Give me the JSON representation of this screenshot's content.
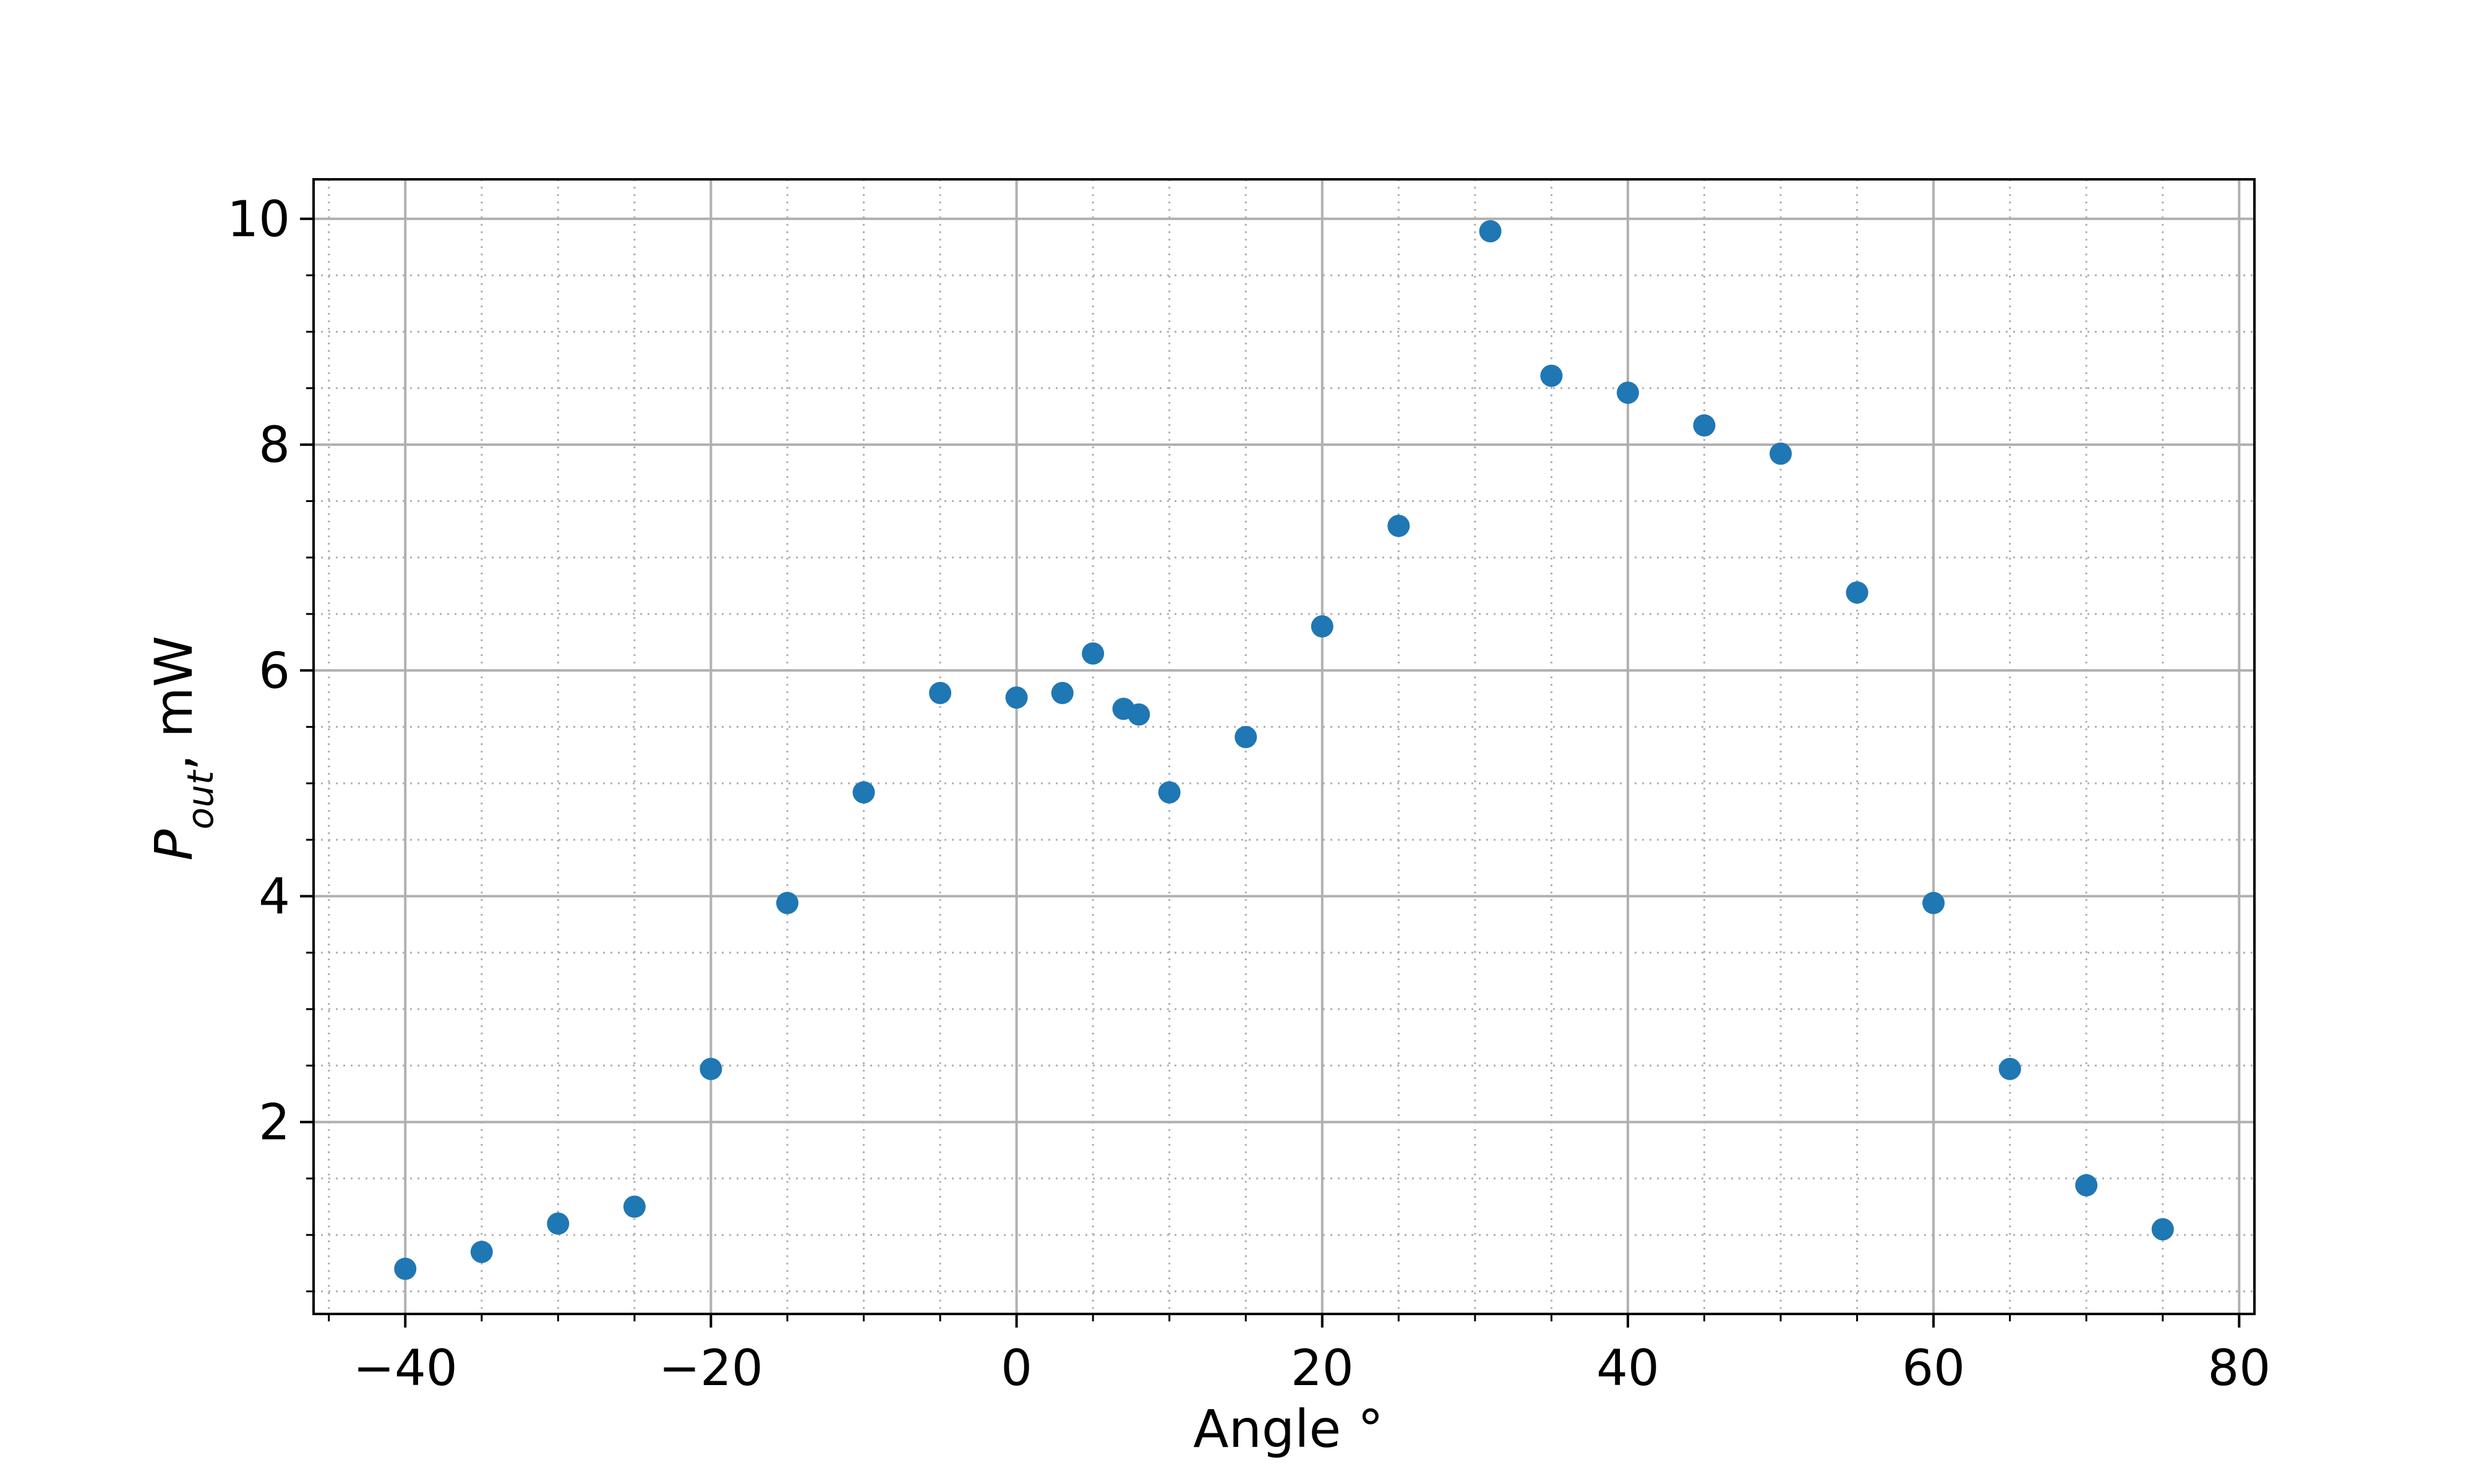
{
  "chart_data": {
    "type": "scatter",
    "xlabel": "Angle °",
    "ylabel": {
      "main": "P",
      "subscript": "out",
      "suffix": ", mW"
    },
    "xlim": [
      -46,
      81
    ],
    "ylim": [
      0.3,
      10.35
    ],
    "xticks": [
      -40,
      -20,
      0,
      20,
      40,
      60,
      80
    ],
    "yticks": [
      2,
      4,
      6,
      8,
      10
    ],
    "xtick_labels": [
      "−40",
      "−20",
      "0",
      "20",
      "40",
      "60",
      "80"
    ],
    "ytick_labels": [
      "2",
      "4",
      "6",
      "8",
      "10"
    ],
    "x_minor_step": 5,
    "y_minor_step": 0.5,
    "grid": {
      "major": true,
      "minor": true,
      "major_style": "solid",
      "minor_style": "dotted",
      "color": "#b0b0b0"
    },
    "marker_color": "#1f77b4",
    "series": [
      {
        "x": [
          -40,
          -35,
          -30,
          -25,
          -20,
          -15,
          -10,
          -5,
          0,
          3,
          5,
          7,
          8,
          10,
          15,
          20,
          25,
          31,
          35,
          40,
          45,
          50,
          55,
          60,
          65,
          70,
          75
        ],
        "y": [
          0.7,
          0.85,
          1.1,
          1.25,
          2.47,
          3.94,
          4.92,
          5.8,
          5.76,
          5.8,
          6.15,
          5.66,
          5.61,
          4.92,
          5.41,
          6.39,
          7.28,
          9.89,
          8.61,
          8.46,
          8.17,
          7.92,
          6.69,
          3.94,
          2.47,
          1.44,
          1.05
        ]
      }
    ]
  }
}
